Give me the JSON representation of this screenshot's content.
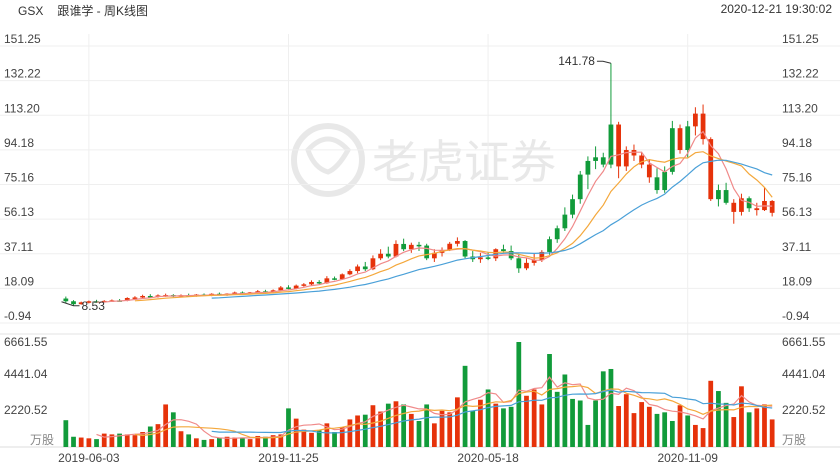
{
  "header": {
    "symbol": "GSX",
    "title": "跟谁学 - 周K线图",
    "datetime": "2020-12-21 19:30:02"
  },
  "colors": {
    "up": "#e6320a",
    "down": "#119b3a",
    "ma1": "#f08a8a",
    "ma2": "#f4a83c",
    "ma3": "#4aa0d8",
    "grid": "#efefef",
    "axis_text": "#444444"
  },
  "chart_data": {
    "type": "candlestick",
    "price_axis": {
      "ticks": [
        "151.25",
        "132.22",
        "113.20",
        "94.18",
        "75.16",
        "56.13",
        "37.11",
        "18.09",
        "-0.94"
      ],
      "min": -0.94,
      "max": 151.25
    },
    "volume_axis": {
      "ticks": [
        "6661.55",
        "4441.04",
        "2220.52"
      ],
      "unit": "万股",
      "max": 6661.55
    },
    "x_labels": [
      "2019-06-03",
      "2019-11-25",
      "2020-05-18",
      "2020-11-09"
    ],
    "annotations": {
      "high": "141.78",
      "low": "8.53"
    },
    "watermark": "老虎证券",
    "candles": [
      [
        12.5,
        13.6,
        9.8,
        11.0,
        1700,
        "down"
      ],
      [
        11.0,
        11.6,
        8.53,
        9.4,
        650,
        "down"
      ],
      [
        9.4,
        10.8,
        9.1,
        10.4,
        600,
        "up"
      ],
      [
        10.4,
        11.4,
        9.8,
        11.0,
        550,
        "up"
      ],
      [
        11.0,
        11.8,
        10.2,
        10.7,
        500,
        "down"
      ],
      [
        10.7,
        11.6,
        10.3,
        11.2,
        850,
        "up"
      ],
      [
        11.2,
        12.0,
        10.8,
        11.5,
        800,
        "up"
      ],
      [
        11.5,
        12.2,
        10.9,
        11.3,
        850,
        "down"
      ],
      [
        11.3,
        13.2,
        11.0,
        12.8,
        800,
        "up"
      ],
      [
        12.8,
        13.8,
        12.3,
        13.1,
        750,
        "up"
      ],
      [
        13.1,
        14.6,
        12.5,
        13.9,
        950,
        "up"
      ],
      [
        13.9,
        14.9,
        13.0,
        13.5,
        1300,
        "down"
      ],
      [
        13.5,
        14.8,
        13.0,
        14.2,
        1450,
        "up"
      ],
      [
        14.2,
        15.2,
        13.4,
        14.4,
        2700,
        "up"
      ],
      [
        14.4,
        14.9,
        13.2,
        13.6,
        2200,
        "down"
      ],
      [
        13.6,
        14.8,
        13.2,
        14.3,
        1000,
        "up"
      ],
      [
        14.3,
        15.2,
        13.8,
        14.1,
        800,
        "down"
      ],
      [
        14.1,
        15.0,
        13.5,
        14.7,
        550,
        "up"
      ],
      [
        14.7,
        15.3,
        14.0,
        14.3,
        450,
        "down"
      ],
      [
        14.3,
        15.4,
        13.8,
        15.1,
        500,
        "up"
      ],
      [
        15.1,
        15.8,
        14.4,
        14.6,
        600,
        "down"
      ],
      [
        14.6,
        15.4,
        14.0,
        15.2,
        650,
        "up"
      ],
      [
        15.2,
        16.3,
        14.8,
        15.8,
        600,
        "up"
      ],
      [
        15.8,
        16.4,
        15.0,
        15.3,
        550,
        "down"
      ],
      [
        15.3,
        16.1,
        14.8,
        15.9,
        500,
        "up"
      ],
      [
        15.9,
        17.2,
        15.4,
        16.5,
        700,
        "up"
      ],
      [
        16.5,
        17.3,
        15.8,
        16.1,
        650,
        "down"
      ],
      [
        16.1,
        17.5,
        15.6,
        17.0,
        750,
        "up"
      ],
      [
        17.0,
        19.4,
        16.6,
        18.6,
        800,
        "up"
      ],
      [
        18.6,
        19.8,
        17.6,
        18.0,
        2450,
        "down"
      ],
      [
        18.0,
        20.2,
        17.5,
        19.6,
        1800,
        "up"
      ],
      [
        19.6,
        21.0,
        19.0,
        20.3,
        1100,
        "up"
      ],
      [
        20.3,
        22.5,
        19.5,
        21.6,
        900,
        "up"
      ],
      [
        21.6,
        22.6,
        20.4,
        20.9,
        1050,
        "down"
      ],
      [
        20.9,
        24.8,
        20.6,
        23.6,
        1500,
        "up"
      ],
      [
        23.6,
        24.6,
        22.6,
        23.1,
        950,
        "down"
      ],
      [
        23.1,
        26.3,
        22.8,
        25.8,
        1250,
        "up"
      ],
      [
        25.8,
        28.6,
        25.3,
        27.6,
        1750,
        "up"
      ],
      [
        27.6,
        31.2,
        26.4,
        30.1,
        2000,
        "up"
      ],
      [
        30.1,
        32.6,
        27.6,
        28.6,
        2050,
        "down"
      ],
      [
        28.6,
        36.2,
        28.1,
        34.6,
        2650,
        "up"
      ],
      [
        34.6,
        39.6,
        33.6,
        37.1,
        2250,
        "up"
      ],
      [
        37.1,
        41.0,
        34.6,
        35.6,
        2750,
        "down"
      ],
      [
        35.6,
        44.5,
        35.1,
        42.5,
        2900,
        "up"
      ],
      [
        42.5,
        45.4,
        38.6,
        39.6,
        2700,
        "down"
      ],
      [
        39.6,
        43.2,
        37.6,
        42.0,
        2100,
        "up"
      ],
      [
        42.0,
        43.6,
        38.6,
        41.6,
        1650,
        "down"
      ],
      [
        41.6,
        42.6,
        33.6,
        34.6,
        2700,
        "down"
      ],
      [
        34.6,
        39.6,
        32.6,
        37.6,
        1500,
        "up"
      ],
      [
        37.6,
        40.6,
        35.6,
        39.1,
        2300,
        "up"
      ],
      [
        39.1,
        43.6,
        38.6,
        42.6,
        2200,
        "up"
      ],
      [
        42.6,
        46.1,
        41.1,
        44.1,
        3150,
        "up"
      ],
      [
        44.1,
        44.6,
        34.6,
        35.6,
        5150,
        "down"
      ],
      [
        35.6,
        38.6,
        32.6,
        34.1,
        2300,
        "down"
      ],
      [
        34.1,
        37.6,
        32.1,
        35.1,
        3000,
        "up"
      ],
      [
        35.1,
        38.1,
        33.6,
        34.6,
        3650,
        "down"
      ],
      [
        34.6,
        40.1,
        33.1,
        39.6,
        2750,
        "up"
      ],
      [
        39.6,
        42.1,
        37.6,
        38.6,
        2450,
        "down"
      ],
      [
        38.6,
        41.6,
        33.6,
        34.6,
        2550,
        "down"
      ],
      [
        34.6,
        36.6,
        26.6,
        29.1,
        6661.55,
        "down"
      ],
      [
        29.1,
        34.6,
        28.1,
        32.1,
        3250,
        "up"
      ],
      [
        32.1,
        37.1,
        30.6,
        33.6,
        3650,
        "up"
      ],
      [
        33.6,
        39.1,
        32.6,
        38.1,
        2700,
        "up"
      ],
      [
        38.1,
        46.6,
        36.6,
        45.1,
        5900,
        "down"
      ],
      [
        45.1,
        52.6,
        43.1,
        51.1,
        3500,
        "down"
      ],
      [
        51.1,
        62.6,
        49.6,
        58.6,
        4600,
        "down"
      ],
      [
        58.6,
        69.6,
        56.6,
        67.1,
        3050,
        "down"
      ],
      [
        67.1,
        82.6,
        64.6,
        80.6,
        2950,
        "down"
      ],
      [
        80.6,
        90.6,
        72.6,
        88.1,
        1400,
        "down"
      ],
      [
        88.1,
        96.1,
        83.6,
        90.1,
        2950,
        "down"
      ],
      [
        90.1,
        92.6,
        84.6,
        86.1,
        4800,
        "down"
      ],
      [
        86.1,
        141.78,
        84.1,
        108.1,
        4950,
        "down"
      ],
      [
        108.1,
        109.6,
        78.6,
        85.1,
        2600,
        "up"
      ],
      [
        85.1,
        96.1,
        82.6,
        94.1,
        3350,
        "up"
      ],
      [
        94.1,
        97.1,
        88.1,
        91.1,
        2150,
        "up"
      ],
      [
        91.1,
        93.1,
        84.1,
        86.1,
        2850,
        "up"
      ],
      [
        86.1,
        89.1,
        76.1,
        79.1,
        2550,
        "up"
      ],
      [
        79.1,
        84.1,
        70.1,
        72.1,
        2100,
        "down"
      ],
      [
        72.1,
        85.1,
        70.6,
        82.1,
        2200,
        "down"
      ],
      [
        82.1,
        110.1,
        80.6,
        106.1,
        1650,
        "down"
      ],
      [
        106.1,
        108.1,
        92.1,
        94.1,
        2650,
        "up"
      ],
      [
        94.1,
        110.1,
        90.1,
        107.1,
        2000,
        "down"
      ],
      [
        107.1,
        117.6,
        102.1,
        114.1,
        1400,
        "up"
      ],
      [
        114.1,
        119.1,
        97.1,
        100.1,
        1200,
        "up"
      ],
      [
        100.1,
        101.1,
        66.1,
        67.1,
        4200,
        "up"
      ],
      [
        67.1,
        75.1,
        63.1,
        72.1,
        3550,
        "down"
      ],
      [
        72.1,
        76.1,
        64.1,
        65.1,
        2800,
        "down"
      ],
      [
        65.1,
        67.1,
        53.6,
        60.1,
        1900,
        "up"
      ],
      [
        60.1,
        70.1,
        58.1,
        67.6,
        3850,
        "up"
      ],
      [
        67.6,
        68.6,
        60.1,
        62.1,
        2200,
        "down"
      ],
      [
        62.1,
        65.1,
        58.1,
        61.1,
        2450,
        "up"
      ],
      [
        61.1,
        73.6,
        60.6,
        66.1,
        2700,
        "up"
      ],
      [
        66.1,
        66.6,
        57.6,
        59.6,
        1750,
        "up"
      ]
    ]
  }
}
